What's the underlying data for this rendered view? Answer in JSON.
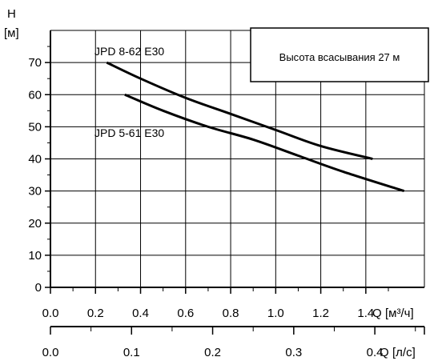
{
  "chart_data": {
    "type": "line",
    "y_axis": {
      "label": "H",
      "unit": "[м]",
      "ticks": [
        0,
        10,
        20,
        30,
        40,
        50,
        60,
        70
      ],
      "ylim": [
        0,
        80
      ]
    },
    "x_axis_primary": {
      "label": "Q",
      "unit": "[м³/ч]",
      "ticks": [
        0.0,
        0.2,
        0.4,
        0.6,
        0.8,
        1.0,
        1.2,
        1.4
      ],
      "tick_labels": [
        "0.0",
        "0.2",
        "0.4",
        "0.6",
        "0.8",
        "1.0",
        "1.2",
        "1.4"
      ],
      "xlim": [
        0,
        1.66
      ]
    },
    "x_axis_secondary": {
      "label": "Q",
      "unit": "[л/с]",
      "ticks": [
        0.0,
        0.1,
        0.2,
        0.3,
        0.4
      ],
      "tick_labels": [
        "0.0",
        "0.1",
        "0.2",
        "0.3",
        "0.4"
      ]
    },
    "annotation": "Высота всасывания 27 м",
    "series": [
      {
        "name": "JPD 8-62 E30",
        "points": [
          [
            0.25,
            70
          ],
          [
            0.4,
            65
          ],
          [
            0.6,
            59
          ],
          [
            0.8,
            54
          ],
          [
            1.0,
            49
          ],
          [
            1.2,
            44
          ],
          [
            1.43,
            40
          ]
        ]
      },
      {
        "name": "JPD 5-61 E30",
        "points": [
          [
            0.33,
            60
          ],
          [
            0.5,
            55
          ],
          [
            0.7,
            50
          ],
          [
            0.9,
            46
          ],
          [
            1.1,
            41
          ],
          [
            1.3,
            36
          ],
          [
            1.57,
            30
          ]
        ]
      }
    ],
    "grid": true
  }
}
